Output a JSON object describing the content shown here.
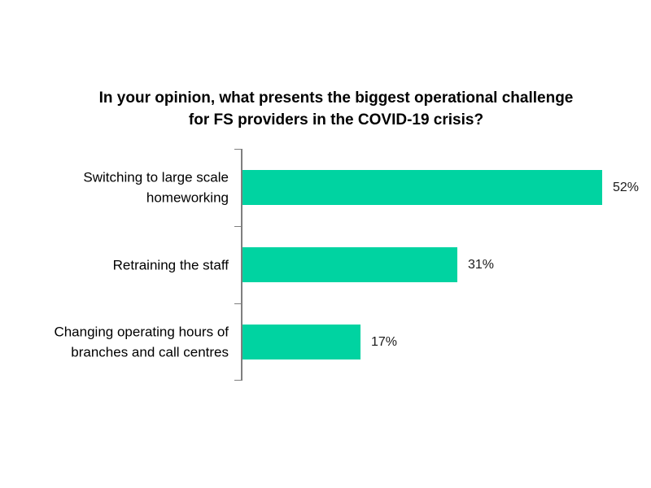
{
  "chart_data": {
    "type": "bar",
    "orientation": "horizontal",
    "title": "In your opinion, what presents the biggest operational challenge for FS providers in the COVID-19 crisis?",
    "categories": [
      "Switching to large scale homeworking",
      "Retraining the staff",
      "Changing operating hours of branches and call centres"
    ],
    "values": [
      52,
      31,
      17
    ],
    "value_labels": [
      "52%",
      "31%",
      "17%"
    ],
    "unit": "%",
    "xlim_estimate": [
      0,
      55
    ],
    "grid": false,
    "legend": false,
    "data_labels_position": "outside-end",
    "bar_color": "#00d3a1",
    "axis_color": "#7f7f7f",
    "title_color": "#000000",
    "label_color": "#000000"
  }
}
